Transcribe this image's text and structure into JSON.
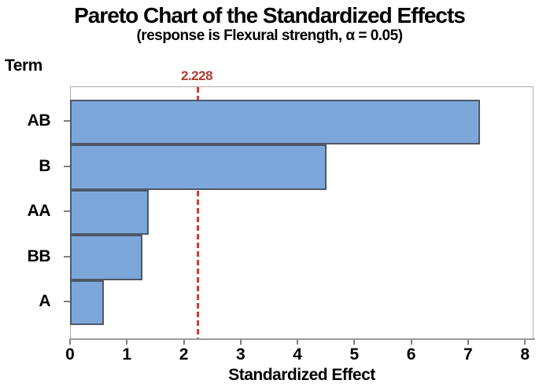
{
  "chart_data": {
    "type": "bar",
    "orientation": "horizontal",
    "title": "Pareto Chart of the Standardized Effects",
    "subtitle": "(response is Flexural strength, α = 0.05)",
    "response": "Flexural strength",
    "alpha": "0.05",
    "ylabel": "Term",
    "xlabel": "Standardized Effect",
    "categories": [
      "AB",
      "B",
      "AA",
      "BB",
      "A"
    ],
    "values": [
      7.2,
      4.5,
      1.37,
      1.26,
      0.58
    ],
    "xlim": [
      0,
      8.15
    ],
    "xticks": [
      0,
      1,
      2,
      3,
      4,
      5,
      6,
      7,
      8
    ],
    "reference_line": {
      "value": 2.228,
      "label": "2.228"
    },
    "legend": "none",
    "grid": "off",
    "colors": {
      "bar_fill": "#7DA7DB",
      "bar_border": "#4E5866",
      "ref_line": "#D43B33",
      "ref_label": "#B13B33",
      "axis_line": "#9B9B9B",
      "tick": "#7F7F7F",
      "plot_border": "#ABABAB",
      "text": "#000000",
      "background": "#FFFFFF"
    }
  }
}
